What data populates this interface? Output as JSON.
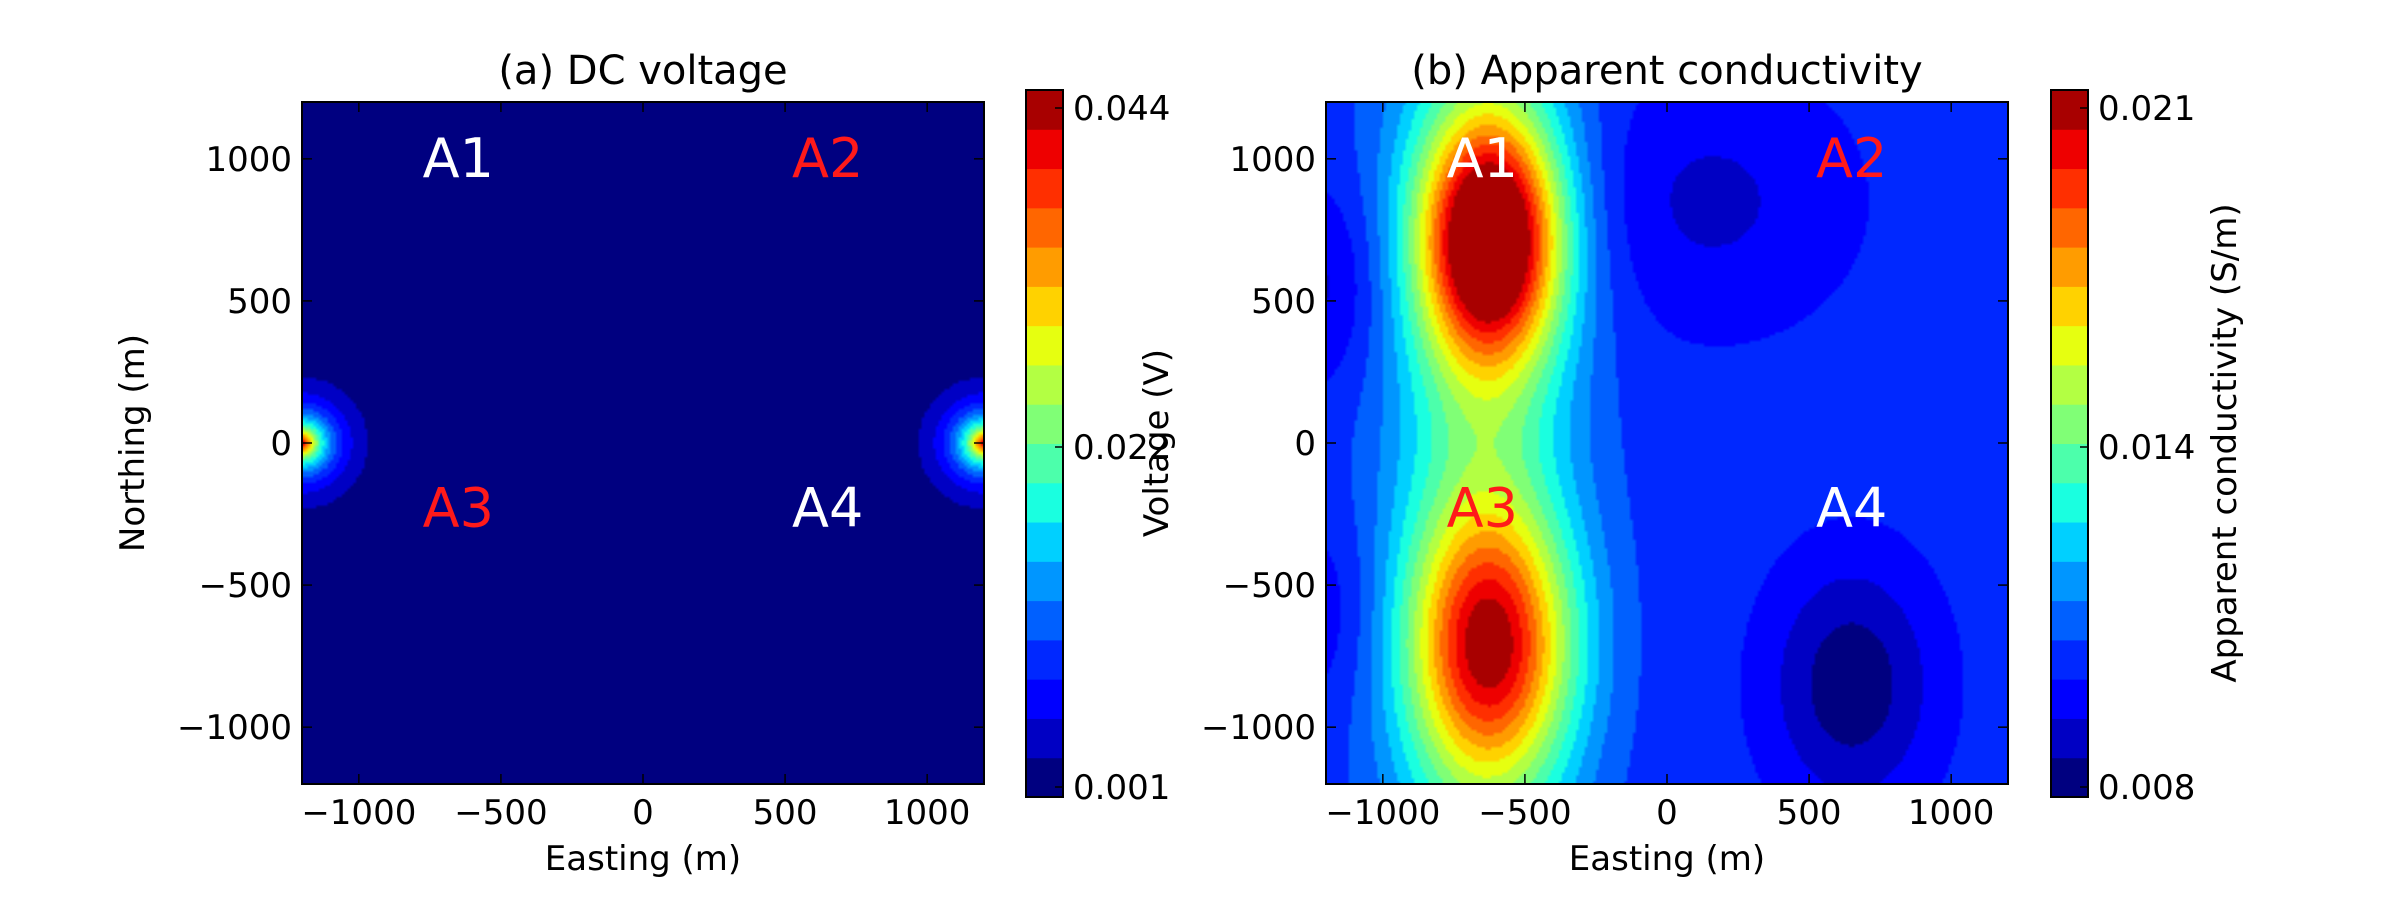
{
  "colors": {
    "jet": [
      "#000080",
      "#0000c4",
      "#0000ff",
      "#0028ff",
      "#0060ff",
      "#0096ff",
      "#00d0ff",
      "#1affe0",
      "#4cffab",
      "#80ff76",
      "#b3ff43",
      "#e6ff10",
      "#ffd200",
      "#ff9c00",
      "#ff6600",
      "#ff2f00",
      "#ee0000",
      "#a80000"
    ],
    "label_white": "#ffffff",
    "label_red": "#ff1a1a"
  },
  "chart_data": [
    {
      "type": "heatmap",
      "title": "(a) DC voltage",
      "xlabel": "Easting (m)",
      "ylabel": "Northing (m)",
      "xlim": [
        -1200,
        1200
      ],
      "ylim": [
        -1200,
        1200
      ],
      "xticks": [
        -1000,
        -500,
        0,
        500,
        1000
      ],
      "yticks": [
        -1000,
        -500,
        0,
        500,
        1000
      ],
      "xtick_labels": [
        "−1000",
        "−500",
        "0",
        "500",
        "1000"
      ],
      "ytick_labels": [
        "−1000",
        "−500",
        "0",
        "500",
        "1000"
      ],
      "grid": false,
      "colorbar": {
        "label": "",
        "range": [
          0.001,
          0.044
        ],
        "tick_values": [
          0.001,
          0.022,
          0.044
        ],
        "tick_labels": [
          "0.001",
          "0.022",
          "0.044"
        ]
      },
      "field": {
        "background": 0.001,
        "sources": [
          {
            "x": -1200,
            "y": 0,
            "peak": 0.044,
            "decay_m": 80
          },
          {
            "x": 1200,
            "y": 0,
            "peak": 0.044,
            "decay_m": 80
          }
        ]
      },
      "annotations": [
        {
          "text": "A1",
          "x": -650,
          "y": 1000,
          "color": "white"
        },
        {
          "text": "A2",
          "x": 650,
          "y": 1000,
          "color": "red"
        },
        {
          "text": "A3",
          "x": -650,
          "y": -230,
          "color": "red"
        },
        {
          "text": "A4",
          "x": 650,
          "y": -230,
          "color": "white"
        }
      ]
    },
    {
      "type": "heatmap",
      "title": "(b) Apparent conductivity",
      "xlabel": "Easting (m)",
      "ylabel": "Voltage (V)",
      "xlim": [
        -1200,
        1200
      ],
      "ylim": [
        -1200,
        1200
      ],
      "xticks": [
        -1000,
        -500,
        0,
        500,
        1000
      ],
      "yticks": [
        -1000,
        -500,
        0,
        500,
        1000
      ],
      "xtick_labels": [
        "−1000",
        "−500",
        "0",
        "500",
        "1000"
      ],
      "ytick_labels": [
        "−1000",
        "−500",
        "0",
        "500",
        "1000"
      ],
      "grid": false,
      "colorbar": {
        "label": "Apparent conductivity (S/m)",
        "range": [
          0.008,
          0.021
        ],
        "tick_values": [
          0.008,
          0.014,
          0.021
        ],
        "tick_labels": [
          "0.008",
          "0.014",
          "0.021"
        ]
      },
      "field": {
        "background": 0.0105,
        "features": [
          {
            "x": -620,
            "y": 720,
            "sx": 170,
            "sy": 300,
            "amp": 0.0105
          },
          {
            "x": -620,
            "y": -720,
            "sx": 200,
            "sy": 330,
            "amp": 0.0075
          },
          {
            "x": -650,
            "y": 0,
            "sx": 230,
            "sy": 1500,
            "amp": 0.0035
          },
          {
            "x": 650,
            "y": -850,
            "sx": 200,
            "sy": 300,
            "amp": -0.0023
          },
          {
            "x": 150,
            "y": 850,
            "sx": 350,
            "sy": 320,
            "amp": -0.0012
          },
          {
            "x": -1200,
            "y": 550,
            "sx": 150,
            "sy": 250,
            "amp": -0.0013
          },
          {
            "x": -1200,
            "y": -600,
            "sx": 150,
            "sy": 250,
            "amp": -0.0009
          }
        ]
      },
      "annotations": [
        {
          "text": "A1",
          "x": -650,
          "y": 1000,
          "color": "white"
        },
        {
          "text": "A2",
          "x": 650,
          "y": 1000,
          "color": "red"
        },
        {
          "text": "A3",
          "x": -650,
          "y": -230,
          "color": "red"
        },
        {
          "text": "A4",
          "x": 650,
          "y": -230,
          "color": "white"
        }
      ]
    }
  ]
}
